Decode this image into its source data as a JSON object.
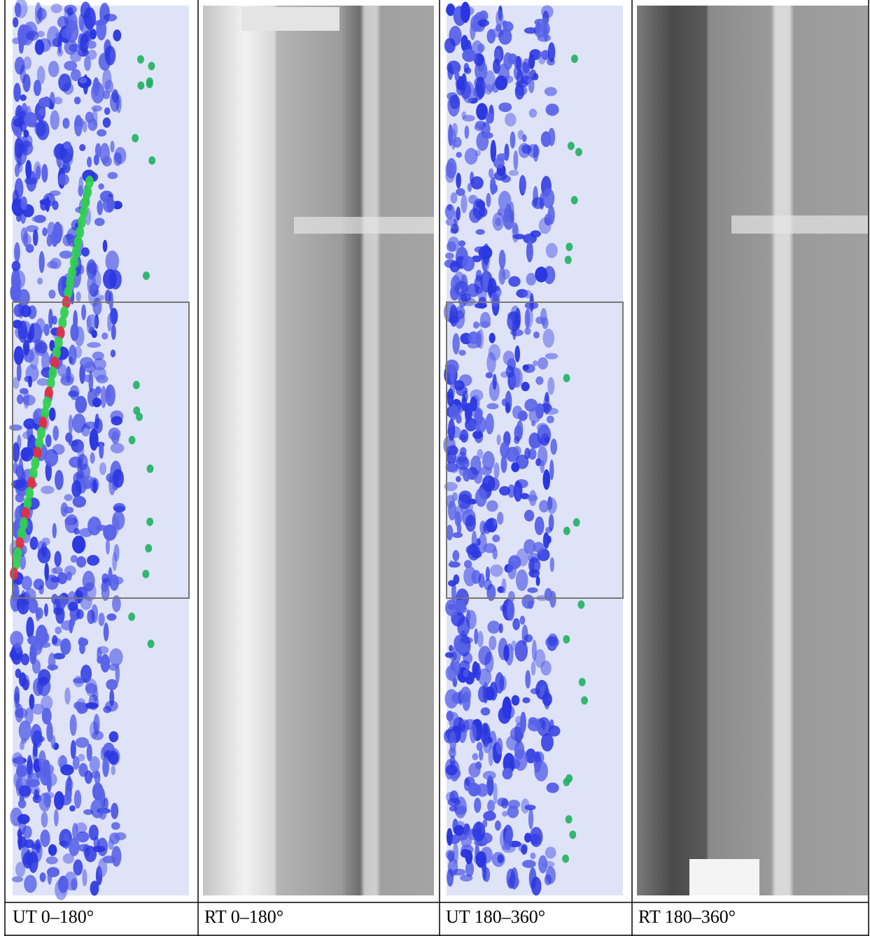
{
  "table": {
    "captions": [
      "UT 0–180°",
      "RT 0–180°",
      "UT 180–360°",
      "RT 180–360°"
    ]
  }
}
